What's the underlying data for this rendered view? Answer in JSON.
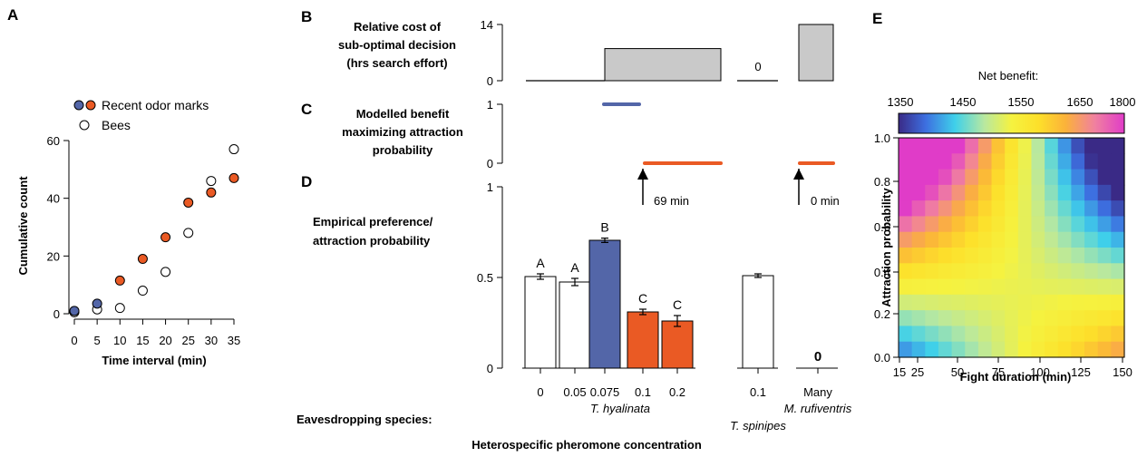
{
  "colors": {
    "blue": "#5366a8",
    "orange": "#ea5a24",
    "gray": "#c9c9c9",
    "white": "#ffffff",
    "black": "#000000"
  },
  "chart_data": [
    {
      "panel": "A",
      "type": "scatter",
      "xlabel": "Time interval (min)",
      "ylabel": "Cumulative count",
      "xlim": [
        0,
        35
      ],
      "ylim": [
        0,
        60
      ],
      "x_ticks": [
        "0",
        "5",
        "10",
        "15",
        "20",
        "25",
        "30",
        "35"
      ],
      "y_ticks": [
        "0",
        "20",
        "40",
        "60"
      ],
      "legend": [
        "Recent odor marks",
        "Bees"
      ],
      "legend_position": "top-left",
      "series": [
        {
          "name": "Recent odor marks",
          "points": [
            {
              "x": 0,
              "y": 1,
              "color": "blue"
            },
            {
              "x": 5,
              "y": 3.5,
              "color": "blue"
            },
            {
              "x": 10,
              "y": 11.5,
              "color": "orange"
            },
            {
              "x": 15,
              "y": 19,
              "color": "orange"
            },
            {
              "x": 20,
              "y": 26.5,
              "color": "orange"
            },
            {
              "x": 25,
              "y": 38.5,
              "color": "orange"
            },
            {
              "x": 30,
              "y": 42,
              "color": "orange"
            },
            {
              "x": 35,
              "y": 47,
              "color": "orange"
            }
          ]
        },
        {
          "name": "Bees",
          "points": [
            {
              "x": 0,
              "y": 0.5
            },
            {
              "x": 5,
              "y": 1.5
            },
            {
              "x": 10,
              "y": 2
            },
            {
              "x": 15,
              "y": 8
            },
            {
              "x": 20,
              "y": 14.5
            },
            {
              "x": 25,
              "y": 28
            },
            {
              "x": 30,
              "y": 46
            },
            {
              "x": 35,
              "y": 57
            }
          ]
        }
      ]
    },
    {
      "panel": "B",
      "type": "bar",
      "title": "Relative cost of sub-optimal decision (hrs search effort)",
      "ylim": [
        0,
        14
      ],
      "y_ticks": [
        "0",
        "14"
      ],
      "segments": [
        {
          "from": "0",
          "to": "0.075",
          "value": 0
        },
        {
          "from": "0.075",
          "to": "0.2",
          "value": 8
        },
        {
          "at": "0.1 (T. spinipes)",
          "value": 0,
          "label": "0"
        },
        {
          "at": "Many (M. rufiventris)",
          "value": 14
        }
      ]
    },
    {
      "panel": "C",
      "type": "line",
      "title": "Modelled benefit maximizing attraction probability",
      "ylim": [
        0,
        1
      ],
      "y_ticks": [
        "0",
        "1"
      ],
      "segments": [
        {
          "from": "0.075",
          "to": "0.075",
          "value": 1,
          "color": "blue"
        },
        {
          "from": "0.1",
          "to": "0.2",
          "value": 0,
          "color": "orange"
        },
        {
          "at": "Many",
          "value": 0,
          "color": "orange"
        }
      ],
      "annotations": [
        "69 min",
        "0 min"
      ]
    },
    {
      "panel": "D",
      "type": "bar",
      "ylabel": "Empirical preference/ attraction probability",
      "xlabel": "Heterospecific pheromone concentration",
      "row_label": "Eavesdropping species:",
      "ylim": [
        0,
        1
      ],
      "y_ticks": [
        "0",
        "0.5",
        "1"
      ],
      "categories": [
        "0",
        "0.05",
        "0.075",
        "0.1",
        "0.2",
        "0.1",
        "Many"
      ],
      "groups": [
        {
          "species": "T. hyalinata",
          "categories": [
            "0",
            "0.05",
            "0.075",
            "0.1",
            "0.2"
          ]
        },
        {
          "species": "T. spinipes",
          "categories": [
            "0.1"
          ]
        },
        {
          "species": "M. rufiventris",
          "categories": [
            "Many"
          ]
        }
      ],
      "bars": [
        {
          "category": "0",
          "value": 0.505,
          "error": 0.015,
          "color": "white",
          "letter": "A"
        },
        {
          "category": "0.05",
          "value": 0.475,
          "error": 0.02,
          "color": "white",
          "letter": "A"
        },
        {
          "category": "0.075",
          "value": 0.705,
          "error": 0.012,
          "color": "blue",
          "letter": "B"
        },
        {
          "category": "0.1",
          "value": 0.31,
          "error": 0.015,
          "color": "orange",
          "letter": "C"
        },
        {
          "category": "0.2",
          "value": 0.26,
          "error": 0.03,
          "color": "orange",
          "letter": "C"
        },
        {
          "category": "0.1",
          "value": 0.51,
          "error": 0.01,
          "color": "white",
          "letter": ""
        },
        {
          "category": "Many",
          "value": 0,
          "error": 0,
          "color": "orange",
          "letter": "",
          "value_label": "0"
        }
      ]
    },
    {
      "panel": "E",
      "type": "heatmap",
      "title": "Net benefit:",
      "xlabel": "Fight duration (min)",
      "ylabel": "Attraction probability",
      "xlim": [
        15,
        150
      ],
      "ylim": [
        0,
        1
      ],
      "x_ticks": [
        "15",
        "25",
        "50",
        "75",
        "100",
        "125",
        "150"
      ],
      "y_ticks": [
        "0.0",
        "0.2",
        "0.4",
        "0.6",
        "0.8",
        "1.0"
      ],
      "colorbar_ticks": [
        "1350",
        "1450",
        "1550",
        "1650",
        "1800"
      ],
      "color_range": [
        1350,
        1800
      ]
    }
  ]
}
